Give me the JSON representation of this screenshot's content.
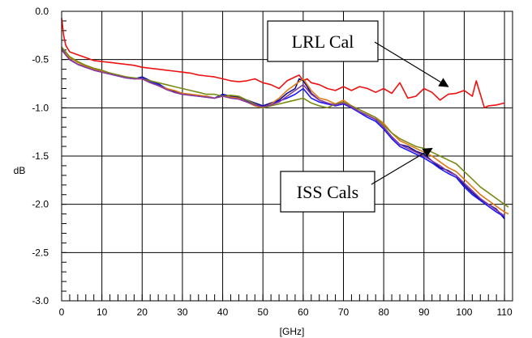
{
  "chart_data": {
    "type": "line",
    "title": "",
    "xlabel": "[GHz]",
    "ylabel": "dB",
    "xlim": [
      0,
      112
    ],
    "ylim": [
      -3.0,
      0.0
    ],
    "grid": true,
    "x_ticks": [
      0,
      10,
      20,
      30,
      40,
      50,
      60,
      70,
      80,
      90,
      100,
      110
    ],
    "x_tick_labels": [
      "0",
      "10",
      "20",
      "30",
      "40",
      "50",
      "60",
      "70",
      "80",
      "90",
      "100",
      "110"
    ],
    "y_ticks": [
      0.0,
      -0.5,
      -1.0,
      -1.5,
      -2.0,
      -2.5,
      -3.0
    ],
    "y_tick_labels": [
      "0.0",
      "-0.5",
      "-1.0",
      "-1.5",
      "-2.0",
      "-2.5",
      "-3.0"
    ],
    "annotations": [
      {
        "text": "LRL Cal",
        "arrow_to": [
          96,
          -0.78
        ]
      },
      {
        "text": "ISS Cals",
        "arrow_to": [
          92,
          -1.42
        ]
      }
    ],
    "series": [
      {
        "color": "#ee1111",
        "x": [
          0,
          0.5,
          1,
          2,
          4,
          6,
          8,
          10,
          12,
          14,
          16,
          18,
          20,
          22,
          24,
          26,
          28,
          30,
          32,
          34,
          36,
          38,
          40,
          42,
          44,
          46,
          48,
          50,
          52,
          54,
          56,
          58,
          59,
          60,
          61,
          62,
          64,
          66,
          68,
          70,
          72,
          74,
          76,
          78,
          80,
          82,
          84,
          86,
          88,
          90,
          92,
          94,
          96,
          98,
          100,
          102,
          103,
          104,
          105,
          106,
          108,
          110
        ],
        "y": [
          -0.07,
          -0.25,
          -0.35,
          -0.42,
          -0.45,
          -0.48,
          -0.51,
          -0.52,
          -0.53,
          -0.54,
          -0.55,
          -0.56,
          -0.58,
          -0.59,
          -0.6,
          -0.61,
          -0.62,
          -0.63,
          -0.64,
          -0.66,
          -0.67,
          -0.68,
          -0.7,
          -0.72,
          -0.73,
          -0.72,
          -0.7,
          -0.74,
          -0.76,
          -0.8,
          -0.72,
          -0.68,
          -0.66,
          -0.72,
          -0.7,
          -0.74,
          -0.76,
          -0.8,
          -0.82,
          -0.78,
          -0.82,
          -0.78,
          -0.8,
          -0.84,
          -0.8,
          -0.85,
          -0.74,
          -0.9,
          -0.88,
          -0.8,
          -0.84,
          -0.92,
          -0.86,
          -0.85,
          -0.82,
          -0.88,
          -0.72,
          -0.86,
          -1.0,
          -0.98,
          -0.97,
          -0.95
        ]
      },
      {
        "color": "#0a0a8c",
        "x": [
          0,
          1,
          2,
          4,
          6,
          8,
          10,
          12,
          14,
          16,
          18,
          20,
          22,
          24,
          26,
          28,
          30,
          32,
          34,
          36,
          38,
          40,
          42,
          44,
          46,
          48,
          50,
          52,
          54,
          56,
          58,
          59,
          60,
          61,
          62,
          64,
          66,
          68,
          70,
          72,
          74,
          76,
          78,
          80,
          82,
          84,
          86,
          88,
          90,
          92,
          94,
          96,
          98,
          100,
          102,
          104,
          106,
          108,
          110
        ],
        "y": [
          -0.4,
          -0.45,
          -0.5,
          -0.55,
          -0.58,
          -0.6,
          -0.62,
          -0.64,
          -0.66,
          -0.68,
          -0.7,
          -0.68,
          -0.72,
          -0.75,
          -0.8,
          -0.83,
          -0.86,
          -0.86,
          -0.88,
          -0.88,
          -0.9,
          -0.86,
          -0.88,
          -0.89,
          -0.92,
          -0.95,
          -0.98,
          -0.95,
          -0.92,
          -0.85,
          -0.8,
          -0.7,
          -0.72,
          -0.78,
          -0.85,
          -0.92,
          -0.95,
          -0.98,
          -0.95,
          -1.0,
          -1.04,
          -1.08,
          -1.12,
          -1.2,
          -1.3,
          -1.38,
          -1.4,
          -1.45,
          -1.48,
          -1.55,
          -1.62,
          -1.65,
          -1.7,
          -1.8,
          -1.88,
          -1.95,
          -2.0,
          -2.05,
          -2.15
        ]
      },
      {
        "color": "#1a1aff",
        "x": [
          0,
          1,
          2,
          4,
          6,
          8,
          10,
          12,
          14,
          16,
          18,
          20,
          22,
          24,
          26,
          28,
          30,
          32,
          34,
          36,
          38,
          40,
          42,
          44,
          46,
          48,
          50,
          52,
          54,
          56,
          58,
          60,
          62,
          64,
          66,
          68,
          70,
          72,
          74,
          76,
          78,
          80,
          82,
          84,
          86,
          88,
          90,
          92,
          94,
          96,
          98,
          100,
          102,
          104,
          106,
          108,
          110
        ],
        "y": [
          -0.38,
          -0.44,
          -0.5,
          -0.55,
          -0.58,
          -0.61,
          -0.63,
          -0.65,
          -0.67,
          -0.69,
          -0.7,
          -0.69,
          -0.73,
          -0.76,
          -0.8,
          -0.84,
          -0.86,
          -0.87,
          -0.88,
          -0.89,
          -0.9,
          -0.87,
          -0.89,
          -0.9,
          -0.93,
          -0.96,
          -0.99,
          -0.96,
          -0.93,
          -0.9,
          -0.86,
          -0.8,
          -0.9,
          -0.94,
          -0.96,
          -0.98,
          -0.96,
          -1.0,
          -1.05,
          -1.1,
          -1.14,
          -1.22,
          -1.32,
          -1.4,
          -1.44,
          -1.48,
          -1.52,
          -1.57,
          -1.63,
          -1.68,
          -1.72,
          -1.82,
          -1.9,
          -1.96,
          -2.02,
          -2.08,
          -2.13
        ]
      },
      {
        "color": "#e07a12",
        "x": [
          0,
          1,
          2,
          4,
          6,
          8,
          10,
          12,
          14,
          16,
          18,
          20,
          22,
          24,
          26,
          28,
          30,
          32,
          34,
          36,
          38,
          40,
          42,
          44,
          46,
          48,
          50,
          52,
          54,
          56,
          58,
          60,
          62,
          64,
          66,
          68,
          70,
          72,
          74,
          76,
          78,
          80,
          82,
          84,
          86,
          88,
          90,
          92,
          94,
          96,
          98,
          100,
          102,
          104,
          106,
          108,
          110,
          111
        ],
        "y": [
          -0.4,
          -0.44,
          -0.48,
          -0.53,
          -0.57,
          -0.6,
          -0.62,
          -0.64,
          -0.66,
          -0.68,
          -0.7,
          -0.7,
          -0.74,
          -0.77,
          -0.8,
          -0.82,
          -0.85,
          -0.86,
          -0.87,
          -0.88,
          -0.9,
          -0.88,
          -0.89,
          -0.9,
          -0.94,
          -0.98,
          -1.0,
          -0.96,
          -0.9,
          -0.82,
          -0.76,
          -0.7,
          -0.82,
          -0.9,
          -0.92,
          -0.96,
          -0.92,
          -0.98,
          -1.02,
          -1.06,
          -1.1,
          -1.16,
          -1.26,
          -1.34,
          -1.38,
          -1.42,
          -1.46,
          -1.5,
          -1.56,
          -1.62,
          -1.66,
          -1.74,
          -1.82,
          -1.9,
          -1.96,
          -2.02,
          -2.08,
          -2.1
        ]
      },
      {
        "color": "#7a8a14",
        "x": [
          0,
          1,
          2,
          4,
          6,
          8,
          10,
          12,
          14,
          16,
          18,
          20,
          22,
          24,
          26,
          28,
          30,
          32,
          34,
          36,
          38,
          40,
          42,
          44,
          46,
          48,
          50,
          52,
          54,
          56,
          58,
          60,
          62,
          64,
          66,
          68,
          70,
          72,
          74,
          76,
          78,
          80,
          82,
          84,
          86,
          88,
          90,
          92,
          94,
          96,
          98,
          100,
          102,
          104,
          106,
          108,
          110,
          111
        ],
        "y": [
          -0.37,
          -0.42,
          -0.47,
          -0.52,
          -0.56,
          -0.59,
          -0.61,
          -0.64,
          -0.66,
          -0.68,
          -0.69,
          -0.7,
          -0.72,
          -0.74,
          -0.76,
          -0.78,
          -0.8,
          -0.82,
          -0.84,
          -0.86,
          -0.86,
          -0.88,
          -0.87,
          -0.88,
          -0.92,
          -0.96,
          -1.0,
          -0.98,
          -0.96,
          -0.94,
          -0.92,
          -0.9,
          -0.95,
          -0.98,
          -1.0,
          -0.96,
          -0.94,
          -0.98,
          -1.02,
          -1.06,
          -1.1,
          -1.18,
          -1.26,
          -1.32,
          -1.36,
          -1.4,
          -1.42,
          -1.46,
          -1.5,
          -1.54,
          -1.58,
          -1.66,
          -1.74,
          -1.82,
          -1.88,
          -1.94,
          -2.0,
          -2.03
        ]
      },
      {
        "color": "#8a3a9a",
        "x": [
          0,
          1,
          2,
          4,
          6,
          8,
          10,
          12,
          14,
          16,
          18,
          20,
          22,
          24,
          26,
          28,
          30,
          32,
          34,
          36,
          38,
          40,
          42,
          44,
          46,
          48,
          50,
          52,
          54,
          56,
          58,
          60,
          62,
          64,
          66,
          68,
          70,
          72,
          74,
          76,
          78,
          80,
          82,
          84,
          86,
          88,
          90,
          92,
          94,
          96,
          98,
          100,
          102,
          104,
          106,
          108,
          110
        ],
        "y": [
          -0.39,
          -0.45,
          -0.5,
          -0.55,
          -0.58,
          -0.61,
          -0.63,
          -0.65,
          -0.67,
          -0.69,
          -0.7,
          -0.7,
          -0.74,
          -0.77,
          -0.81,
          -0.84,
          -0.86,
          -0.87,
          -0.88,
          -0.89,
          -0.9,
          -0.88,
          -0.9,
          -0.91,
          -0.94,
          -0.97,
          -0.99,
          -0.97,
          -0.94,
          -0.88,
          -0.82,
          -0.76,
          -0.86,
          -0.92,
          -0.95,
          -0.97,
          -0.95,
          -0.99,
          -1.04,
          -1.08,
          -1.12,
          -1.2,
          -1.3,
          -1.38,
          -1.42,
          -1.46,
          -1.5,
          -1.55,
          -1.6,
          -1.66,
          -1.7,
          -1.78,
          -1.86,
          -1.94,
          -2.0,
          -2.06,
          -2.12
        ]
      }
    ]
  }
}
